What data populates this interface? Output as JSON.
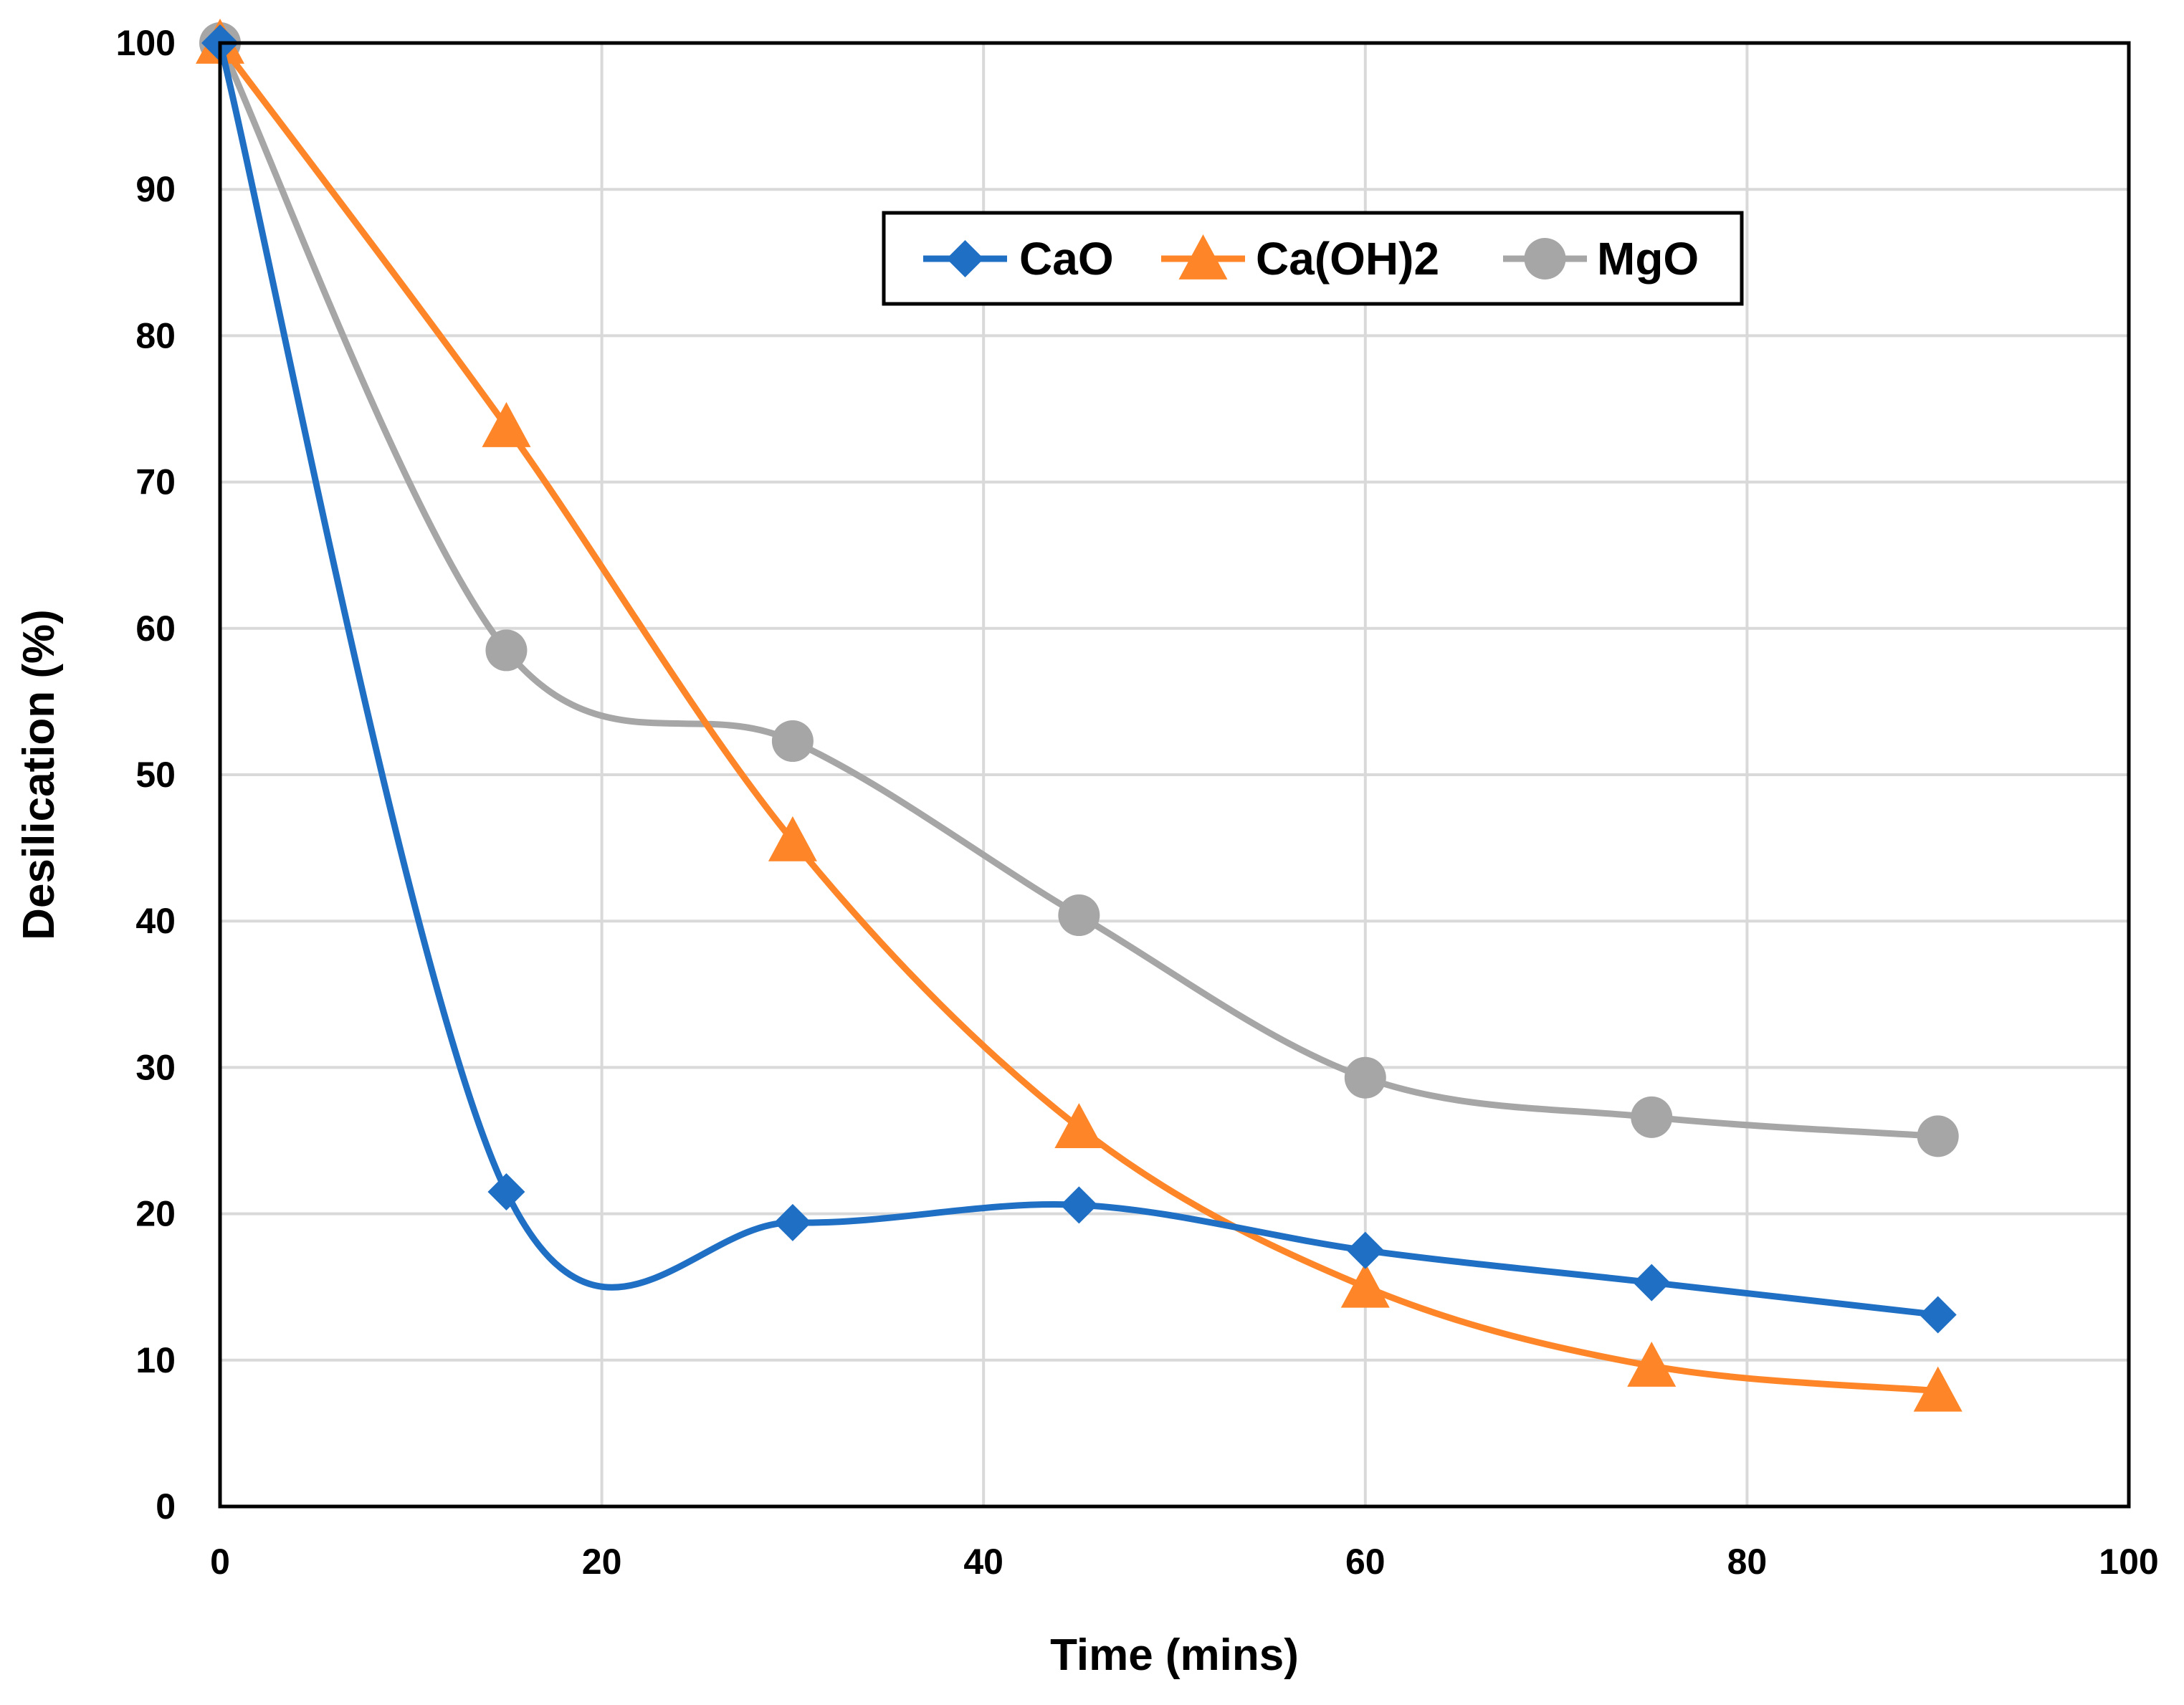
{
  "chart_data": {
    "type": "line",
    "title": "",
    "xlabel": "Time (mins)",
    "ylabel": "Desilication (%)",
    "xlim": [
      0,
      100
    ],
    "ylim": [
      0,
      100
    ],
    "xticks": [
      0,
      20,
      40,
      60,
      80,
      100
    ],
    "yticks": [
      0,
      10,
      20,
      30,
      40,
      50,
      60,
      70,
      80,
      90,
      100
    ],
    "grid": true,
    "legend_position": "top-center",
    "x": [
      0,
      15,
      30,
      45,
      60,
      75,
      90
    ],
    "series": [
      {
        "name": "CaO",
        "color": "#1F6FC4",
        "marker": "diamond",
        "values": [
          100,
          21.5,
          19.4,
          20.6,
          17.5,
          15.3,
          13.1
        ]
      },
      {
        "name": "Ca(OH)2",
        "color": "#FF8628",
        "marker": "triangle",
        "values": [
          100,
          73.8,
          45.5,
          25.9,
          15.0,
          9.6,
          7.9
        ]
      },
      {
        "name": "MgO",
        "color": "#A6A6A6",
        "marker": "circle",
        "values": [
          100,
          58.5,
          52.3,
          40.4,
          29.3,
          26.6,
          25.3
        ]
      }
    ]
  }
}
